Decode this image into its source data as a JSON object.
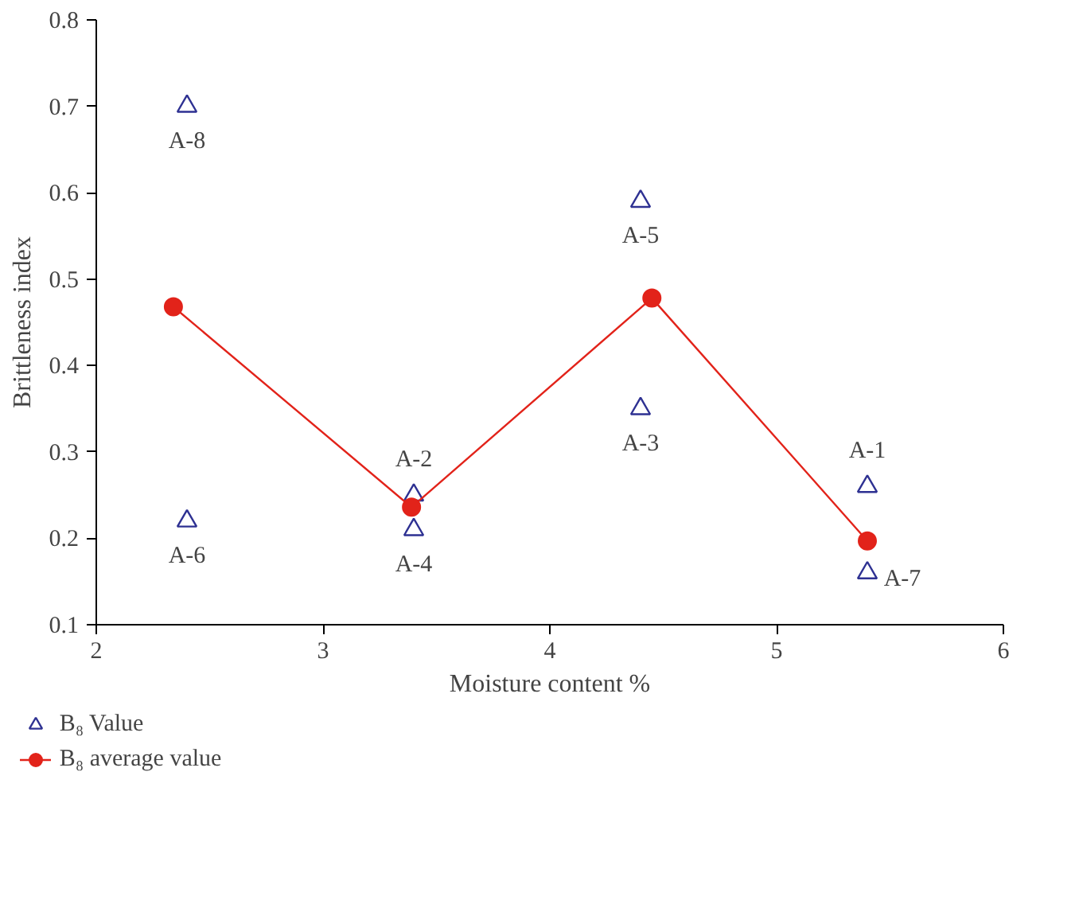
{
  "chart_data": {
    "type": "scatter",
    "xlabel": "Moisture content %",
    "ylabel": "Brittleness index",
    "xlim": [
      2,
      6
    ],
    "ylim": [
      0.1,
      0.8
    ],
    "xticks": [
      2,
      3,
      4,
      5,
      6
    ],
    "yticks": [
      0.1,
      0.2,
      0.3,
      0.4,
      0.5,
      0.6,
      0.7,
      0.8
    ],
    "grid": false,
    "legend": "bottom",
    "series": [
      {
        "name": "B₈ Value",
        "marker": "triangle",
        "color": "#2e3192",
        "x": [
          2.4,
          2.4,
          3.4,
          3.4,
          4.4,
          4.4,
          5.4,
          5.4
        ],
        "values": [
          0.7,
          0.22,
          0.25,
          0.21,
          0.59,
          0.35,
          0.26,
          0.16
        ]
      },
      {
        "name": "B₈ average value",
        "type": "line",
        "marker": "circle",
        "color": "#e2231a",
        "x": [
          2.34,
          3.39,
          4.45,
          5.4
        ],
        "values": [
          0.468,
          0.236,
          0.478,
          0.197
        ]
      }
    ],
    "annotations": [
      {
        "text": "A-8",
        "x": 2.4,
        "y": 0.7
      },
      {
        "text": "A-6",
        "x": 2.4,
        "y": 0.22
      },
      {
        "text": "A-2",
        "x": 3.4,
        "y": 0.25
      },
      {
        "text": "A-4",
        "x": 3.4,
        "y": 0.21
      },
      {
        "text": "A-5",
        "x": 4.4,
        "y": 0.59
      },
      {
        "text": "A-3",
        "x": 4.4,
        "y": 0.35
      },
      {
        "text": "A-1",
        "x": 5.4,
        "y": 0.26
      },
      {
        "text": "A-7",
        "x": 5.4,
        "y": 0.16
      }
    ]
  }
}
